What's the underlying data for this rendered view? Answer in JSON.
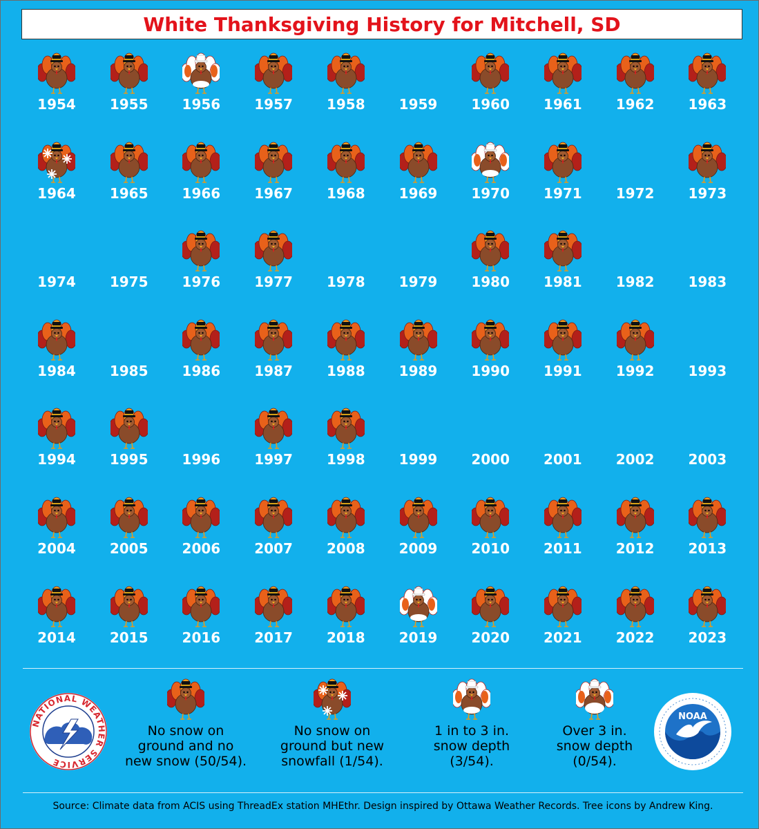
{
  "title": "White Thanksgiving History for Mitchell, SD",
  "colors": {
    "background": "#12b0ec",
    "title_text": "#e3131b",
    "year_text": "#ffffff"
  },
  "icons": {
    "none": "turkey-icon",
    "new": "turkey-snowflakes-icon",
    "light": "turkey-snowy-icon",
    "heavy": "turkey-snow-covered-icon"
  },
  "years": [
    {
      "year": "1954",
      "status": "none"
    },
    {
      "year": "1955",
      "status": "none"
    },
    {
      "year": "1956",
      "status": "light"
    },
    {
      "year": "1957",
      "status": "none"
    },
    {
      "year": "1958",
      "status": "none"
    },
    {
      "year": "1959",
      "status": "missing"
    },
    {
      "year": "1960",
      "status": "none"
    },
    {
      "year": "1961",
      "status": "none"
    },
    {
      "year": "1962",
      "status": "none"
    },
    {
      "year": "1963",
      "status": "none"
    },
    {
      "year": "1964",
      "status": "new"
    },
    {
      "year": "1965",
      "status": "none"
    },
    {
      "year": "1966",
      "status": "none"
    },
    {
      "year": "1967",
      "status": "none"
    },
    {
      "year": "1968",
      "status": "none"
    },
    {
      "year": "1969",
      "status": "none"
    },
    {
      "year": "1970",
      "status": "light"
    },
    {
      "year": "1971",
      "status": "none"
    },
    {
      "year": "1972",
      "status": "missing"
    },
    {
      "year": "1973",
      "status": "none"
    },
    {
      "year": "1974",
      "status": "missing"
    },
    {
      "year": "1975",
      "status": "missing"
    },
    {
      "year": "1976",
      "status": "none"
    },
    {
      "year": "1977",
      "status": "none"
    },
    {
      "year": "1978",
      "status": "missing"
    },
    {
      "year": "1979",
      "status": "missing"
    },
    {
      "year": "1980",
      "status": "none"
    },
    {
      "year": "1981",
      "status": "none"
    },
    {
      "year": "1982",
      "status": "missing"
    },
    {
      "year": "1983",
      "status": "missing"
    },
    {
      "year": "1984",
      "status": "none"
    },
    {
      "year": "1985",
      "status": "missing"
    },
    {
      "year": "1986",
      "status": "none"
    },
    {
      "year": "1987",
      "status": "none"
    },
    {
      "year": "1988",
      "status": "none"
    },
    {
      "year": "1989",
      "status": "none"
    },
    {
      "year": "1990",
      "status": "none"
    },
    {
      "year": "1991",
      "status": "none"
    },
    {
      "year": "1992",
      "status": "none"
    },
    {
      "year": "1993",
      "status": "missing"
    },
    {
      "year": "1994",
      "status": "none"
    },
    {
      "year": "1995",
      "status": "none"
    },
    {
      "year": "1996",
      "status": "missing"
    },
    {
      "year": "1997",
      "status": "none"
    },
    {
      "year": "1998",
      "status": "none"
    },
    {
      "year": "1999",
      "status": "missing"
    },
    {
      "year": "2000",
      "status": "missing"
    },
    {
      "year": "2001",
      "status": "missing"
    },
    {
      "year": "2002",
      "status": "missing"
    },
    {
      "year": "2003",
      "status": "missing"
    },
    {
      "year": "2004",
      "status": "none"
    },
    {
      "year": "2005",
      "status": "none"
    },
    {
      "year": "2006",
      "status": "none"
    },
    {
      "year": "2007",
      "status": "none"
    },
    {
      "year": "2008",
      "status": "none"
    },
    {
      "year": "2009",
      "status": "none"
    },
    {
      "year": "2010",
      "status": "none"
    },
    {
      "year": "2011",
      "status": "none"
    },
    {
      "year": "2012",
      "status": "none"
    },
    {
      "year": "2013",
      "status": "none"
    },
    {
      "year": "2014",
      "status": "none"
    },
    {
      "year": "2015",
      "status": "none"
    },
    {
      "year": "2016",
      "status": "none"
    },
    {
      "year": "2017",
      "status": "none"
    },
    {
      "year": "2018",
      "status": "none"
    },
    {
      "year": "2019",
      "status": "light"
    },
    {
      "year": "2020",
      "status": "none"
    },
    {
      "year": "2021",
      "status": "none"
    },
    {
      "year": "2022",
      "status": "none"
    },
    {
      "year": "2023",
      "status": "none"
    }
  ],
  "legend": [
    {
      "status": "none",
      "line1": "No snow on",
      "line2": "ground and no",
      "line3": "new snow (50/54)."
    },
    {
      "status": "new",
      "line1": "No snow on",
      "line2": "ground but new",
      "line3": "snowfall (1/54)."
    },
    {
      "status": "light",
      "line1": "1 in to 3 in.",
      "line2": "snow depth",
      "line3": "(3/54)."
    },
    {
      "status": "heavy",
      "line1": "Over 3 in.",
      "line2": "snow depth",
      "line3": "(0/54)."
    }
  ],
  "nws_logo": {
    "text": "NATIONAL WEATHER SERVICE",
    "icon": "nws-logo-icon"
  },
  "noaa_logo": {
    "text": "NOAA",
    "icon": "noaa-logo-icon"
  },
  "source": "Source: Climate data from ACIS using ThreadEx station MHEthr. Design inspired by Ottawa Weather Records. Tree icons by Andrew King."
}
